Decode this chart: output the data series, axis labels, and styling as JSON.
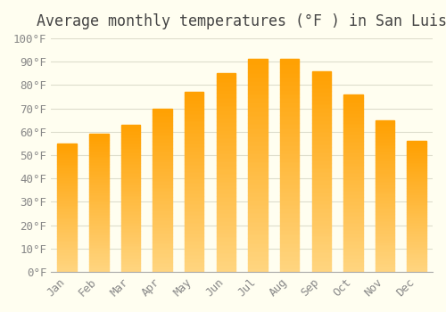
{
  "title": "Average monthly temperatures (°F ) in San Luis",
  "months": [
    "Jan",
    "Feb",
    "Mar",
    "Apr",
    "May",
    "Jun",
    "Jul",
    "Aug",
    "Sep",
    "Oct",
    "Nov",
    "Dec"
  ],
  "values": [
    55,
    59,
    63,
    70,
    77,
    85,
    91,
    91,
    86,
    76,
    65,
    56
  ],
  "bar_color_top": "#FFA500",
  "bar_color_bottom": "#FFD580",
  "ylim": [
    0,
    100
  ],
  "ytick_step": 10,
  "background_color": "#FFFEF0",
  "grid_color": "#DDDDCC",
  "title_fontsize": 12,
  "tick_fontsize": 9,
  "font_family": "monospace"
}
